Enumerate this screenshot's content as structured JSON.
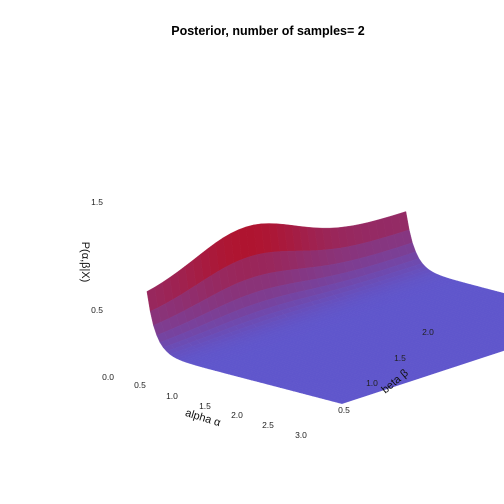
{
  "chart_data": {
    "type": "surface",
    "title": "Posterior, number of samples= 2",
    "xlabel": "alpha α",
    "ylabel": "beta  β",
    "zlabel": "P(α,β|X)",
    "x_ticks": [
      "0.5",
      "1.0",
      "1.5",
      "2.0",
      "2.5",
      "3.0"
    ],
    "y_ticks": [
      "0.5",
      "1.0",
      "1.5",
      "2.0"
    ],
    "z_ticks": [
      "0.0",
      "0.5",
      "1.5"
    ],
    "xlim": [
      0.0,
      3.0
    ],
    "ylim": [
      0.0,
      2.2
    ],
    "zlim": [
      0.0,
      1.8
    ],
    "peak": {
      "alpha": 0.0,
      "beta": 1.0,
      "value": 1.75
    },
    "colormap": {
      "low": "#5a5ad6",
      "high": "#c80000"
    },
    "grid": false,
    "legend": "none"
  }
}
